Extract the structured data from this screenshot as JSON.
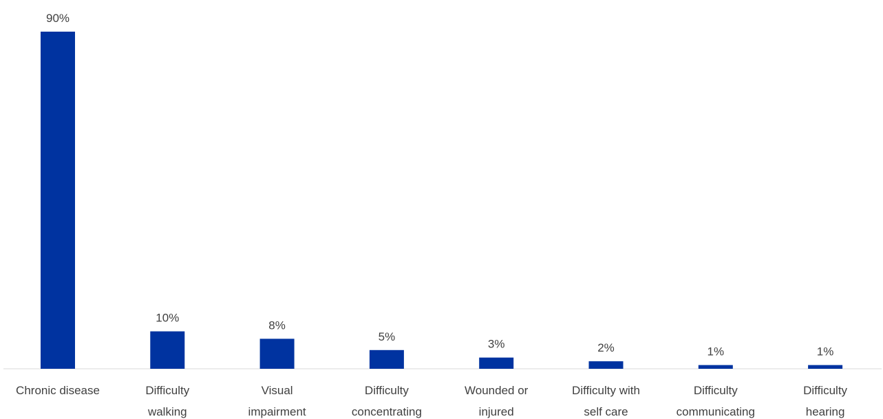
{
  "chart_data": {
    "type": "bar",
    "title": "",
    "xlabel": "",
    "ylabel": "",
    "ylim": [
      0,
      90
    ],
    "grid": false,
    "legend": "none",
    "bar_color": "#0033A0",
    "baseline_color": "#D9D9D9",
    "categories": [
      [
        "Chronic disease"
      ],
      [
        "Difficulty",
        "walking"
      ],
      [
        "Visual",
        "impairment"
      ],
      [
        "Difficulty",
        "concentrating"
      ],
      [
        "Wounded or",
        "injured"
      ],
      [
        "Difficulty with",
        "self care"
      ],
      [
        "Difficulty",
        "communicating"
      ],
      [
        "Difficulty",
        "hearing"
      ]
    ],
    "values": [
      90,
      10,
      8,
      5,
      3,
      2,
      1,
      1
    ],
    "value_labels": [
      "90%",
      "10%",
      "8%",
      "5%",
      "3%",
      "2%",
      "1%",
      "1%"
    ]
  }
}
